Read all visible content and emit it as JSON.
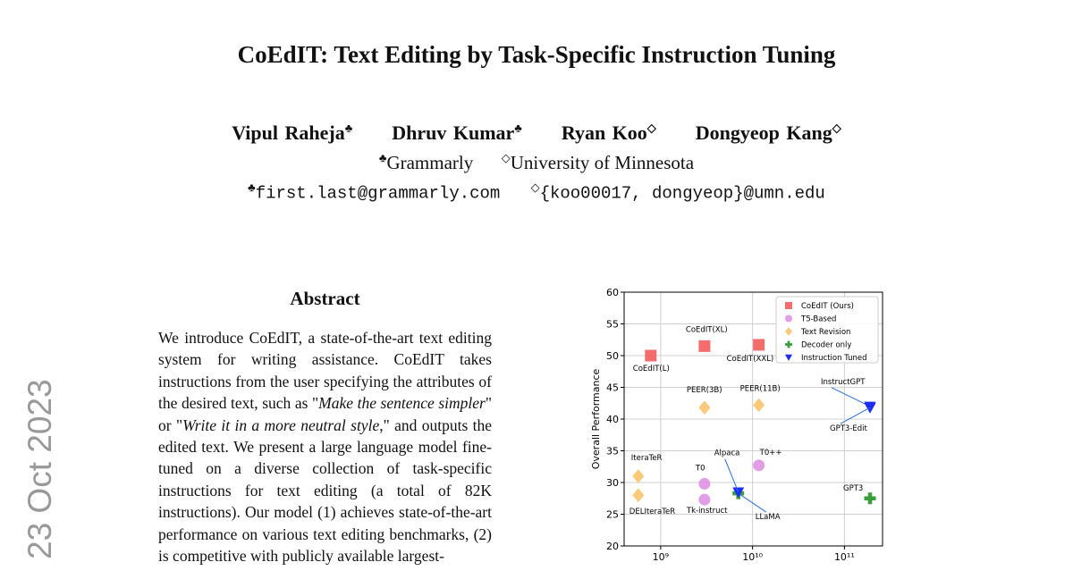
{
  "header": {
    "title": "CoEdIT: Text Editing by Task-Specific Instruction Tuning",
    "authors": [
      {
        "name": "Vipul Raheja",
        "mark": "♣"
      },
      {
        "name": "Dhruv Kumar",
        "mark": "♣"
      },
      {
        "name": "Ryan Koo",
        "mark": "◇"
      },
      {
        "name": "Dongyeop Kang",
        "mark": "◇"
      }
    ],
    "affiliations": [
      {
        "mark": "♣",
        "name": "Grammarly"
      },
      {
        "mark": "◇",
        "name": "University of Minnesota"
      }
    ],
    "emails": [
      {
        "mark": "♣",
        "text": "first.last@grammarly.com"
      },
      {
        "mark": "◇",
        "text": "{koo00017, dongyeop}@umn.edu"
      }
    ]
  },
  "side_stamp": "23 Oct 2023",
  "abstract": {
    "heading": "Abstract",
    "parts": [
      "We introduce CoEdIT, a state-of-the-art text editing system for writing assistance. CoEdIT takes instructions from the user specifying the attributes of the desired text, such as \"",
      "Make the sentence simpler",
      "\" or \"",
      "Write it in a more neutral style",
      ",\" and outputs the edited text. We present a large language model fine-tuned on a diverse collection of task-specific instructions for text editing (a total of 82K instructions). Our model (1) achieves state-of-the-art performance on various text editing benchmarks, (2) is competitive with publicly available largest-"
    ]
  },
  "chart_data": {
    "type": "scatter",
    "ylabel": "Overall Performance",
    "xscale": "log",
    "grid": true,
    "legend": "upper right",
    "xlim": [
      400000000,
      260000000000
    ],
    "xticks": [
      {
        "value": 1000000000,
        "label": "10⁹"
      },
      {
        "value": 10000000000,
        "label": "10¹⁰"
      },
      {
        "value": 100000000000,
        "label": "10¹¹"
      }
    ],
    "ylim": [
      20,
      60
    ],
    "yticks": [
      20,
      25,
      30,
      35,
      40,
      45,
      50,
      55,
      60
    ],
    "series": [
      {
        "name": "CoEdIT (Ours)",
        "color": "#f25454",
        "marker": "square",
        "x": [
          780000000,
          3000000000,
          11700000000
        ],
        "values": [
          50,
          51.5,
          51.7
        ],
        "labels": [
          "CoEdIT(L)",
          "CoEdIT(XL)",
          "CoEdIT(XXL)"
        ]
      },
      {
        "name": "T5-Based",
        "color": "#dc8ce0",
        "marker": "circle",
        "x": [
          3000000000,
          3000000000,
          11700000000
        ],
        "values": [
          29.8,
          27.3,
          32.7
        ],
        "labels": [
          "T0",
          "Tk-instruct",
          "T0++"
        ]
      },
      {
        "name": "Text Revision",
        "color": "#f9c062",
        "marker": "diamond",
        "x": [
          570000000,
          570000000,
          3000000000,
          11700000000
        ],
        "values": [
          31,
          28,
          41.8,
          42.2
        ],
        "labels": [
          "IteraTeR",
          "DELIteraTeR",
          "PEER(3B)",
          "PEER(11B)"
        ]
      },
      {
        "name": "Decoder only",
        "color": "#3a9e3a",
        "marker": "plus",
        "x": [
          7000000000,
          190000000000
        ],
        "values": [
          28.3,
          27.5
        ],
        "labels": [
          "LLaMA",
          "GPT3"
        ]
      },
      {
        "name": "Instruction Tuned",
        "color": "#1e2cf5",
        "marker": "triangle",
        "x": [
          7000000000,
          190000000000,
          190000000000
        ],
        "values": [
          28.5,
          42,
          41.8
        ],
        "labels": [
          "Alpaca",
          "InstructGPT",
          "GPT3-Edit"
        ]
      }
    ]
  }
}
